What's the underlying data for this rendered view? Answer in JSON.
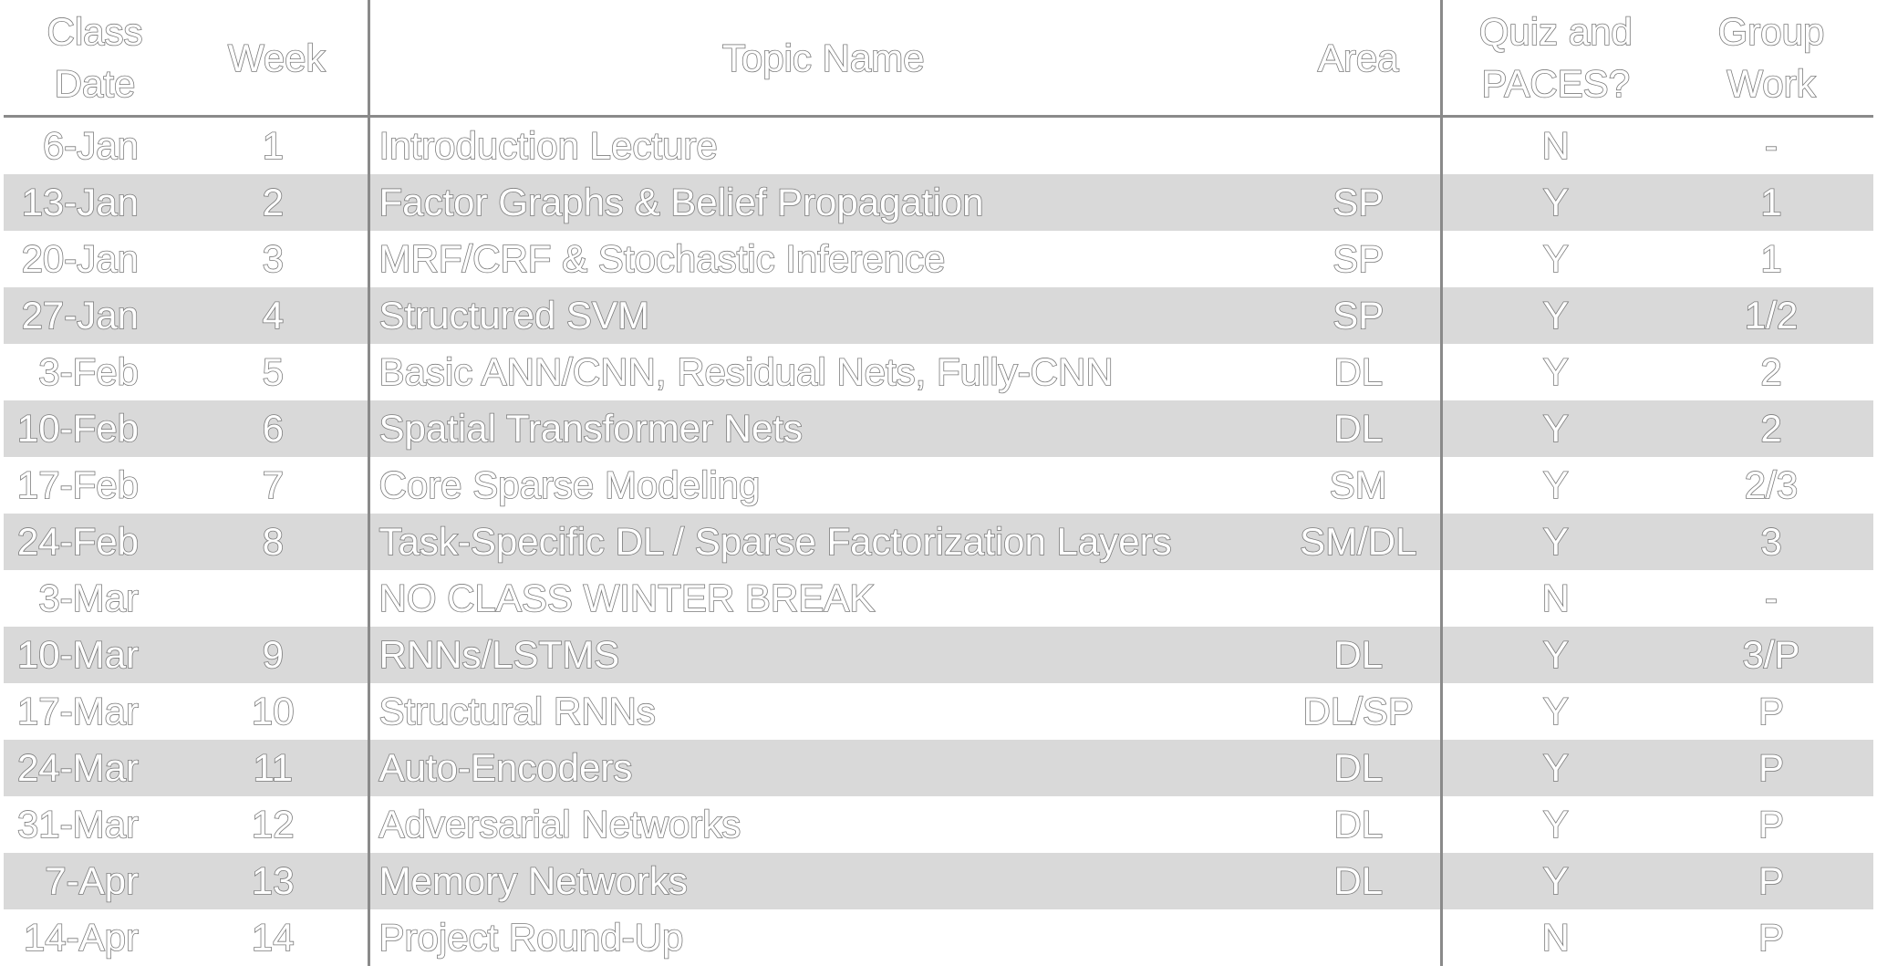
{
  "headers": {
    "class_date": [
      "Class",
      "Date"
    ],
    "week": "Week",
    "topic_name": "Topic Name",
    "area": "Area",
    "quiz": [
      "Quiz and",
      "PACES?"
    ],
    "group_work": [
      "Group",
      "Work"
    ]
  },
  "rows": [
    {
      "date": "6-Jan",
      "week": "1",
      "topic": "Introduction Lecture",
      "area": "",
      "quiz": "N",
      "group": "-"
    },
    {
      "date": "13-Jan",
      "week": "2",
      "topic": "Factor Graphs & Belief Propagation",
      "area": "SP",
      "quiz": "Y",
      "group": "1"
    },
    {
      "date": "20-Jan",
      "week": "3",
      "topic": "MRF/CRF & Stochastic Inference",
      "area": "SP",
      "quiz": "Y",
      "group": "1"
    },
    {
      "date": "27-Jan",
      "week": "4",
      "topic": "Structured SVM",
      "area": "SP",
      "quiz": "Y",
      "group": "1/2"
    },
    {
      "date": "3-Feb",
      "week": "5",
      "topic": "Basic ANN/CNN, Residual Nets, Fully-CNN",
      "area": "DL",
      "quiz": "Y",
      "group": "2"
    },
    {
      "date": "10-Feb",
      "week": "6",
      "topic": "Spatial Transformer Nets",
      "area": "DL",
      "quiz": "Y",
      "group": "2"
    },
    {
      "date": "17-Feb",
      "week": "7",
      "topic": "Core Sparse Modeling",
      "area": "SM",
      "quiz": "Y",
      "group": "2/3"
    },
    {
      "date": "24-Feb",
      "week": "8",
      "topic": "Task-Specific DL / Sparse Factorization Layers",
      "area": "SM/DL",
      "quiz": "Y",
      "group": "3"
    },
    {
      "date": "3-Mar",
      "week": "",
      "topic": "NO CLASS WINTER BREAK",
      "area": "",
      "quiz": "N",
      "group": "-"
    },
    {
      "date": "10-Mar",
      "week": "9",
      "topic": "RNNs/LSTMS",
      "area": "DL",
      "quiz": "Y",
      "group": "3/P"
    },
    {
      "date": "17-Mar",
      "week": "10",
      "topic": "Structural RNNs",
      "area": "DL/SP",
      "quiz": "Y",
      "group": "P"
    },
    {
      "date": "24-Mar",
      "week": "11",
      "topic": "Auto-Encoders",
      "area": "DL",
      "quiz": "Y",
      "group": "P"
    },
    {
      "date": "31-Mar",
      "week": "12",
      "topic": "Adversarial Networks",
      "area": "DL",
      "quiz": "Y",
      "group": "P"
    },
    {
      "date": "7-Apr",
      "week": "13",
      "topic": "Memory Networks",
      "area": "DL",
      "quiz": "Y",
      "group": "P"
    },
    {
      "date": "14-Apr",
      "week": "14",
      "topic": "Project Round-Up",
      "area": "",
      "quiz": "N",
      "group": "P"
    }
  ]
}
